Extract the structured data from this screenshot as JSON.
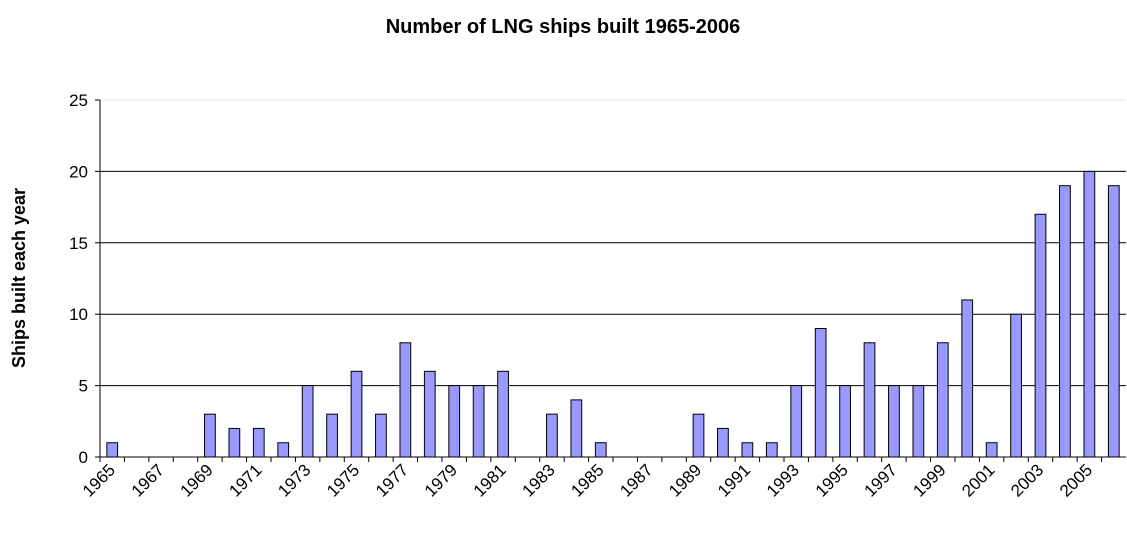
{
  "chart_data": {
    "type": "bar",
    "title": "Number of LNG ships built 1965-2006",
    "ylabel": "Ships built each year",
    "categories": [
      "1965",
      null,
      "1967",
      null,
      "1969",
      null,
      "1971",
      null,
      "1973",
      null,
      "1975",
      null,
      "1977",
      null,
      "1979",
      null,
      "1981",
      null,
      "1983",
      null,
      "1985",
      null,
      "1987",
      null,
      "1989",
      null,
      "1991",
      null,
      "1993",
      null,
      "1995",
      null,
      "1997",
      null,
      "1999",
      null,
      "2001",
      null,
      "2003",
      null,
      "2005",
      null
    ],
    "values": [
      1,
      0,
      0,
      0,
      3,
      2,
      2,
      1,
      5,
      3,
      6,
      3,
      8,
      6,
      5,
      5,
      6,
      0,
      3,
      4,
      1,
      0,
      0,
      0,
      3,
      2,
      1,
      1,
      5,
      9,
      5,
      8,
      5,
      5,
      8,
      11,
      1,
      10,
      17,
      19,
      20,
      19
    ],
    "color": "#9999ff",
    "ylim": [
      0,
      25
    ],
    "yticks": [
      0,
      5,
      10,
      15,
      20,
      25
    ],
    "grid": true
  }
}
